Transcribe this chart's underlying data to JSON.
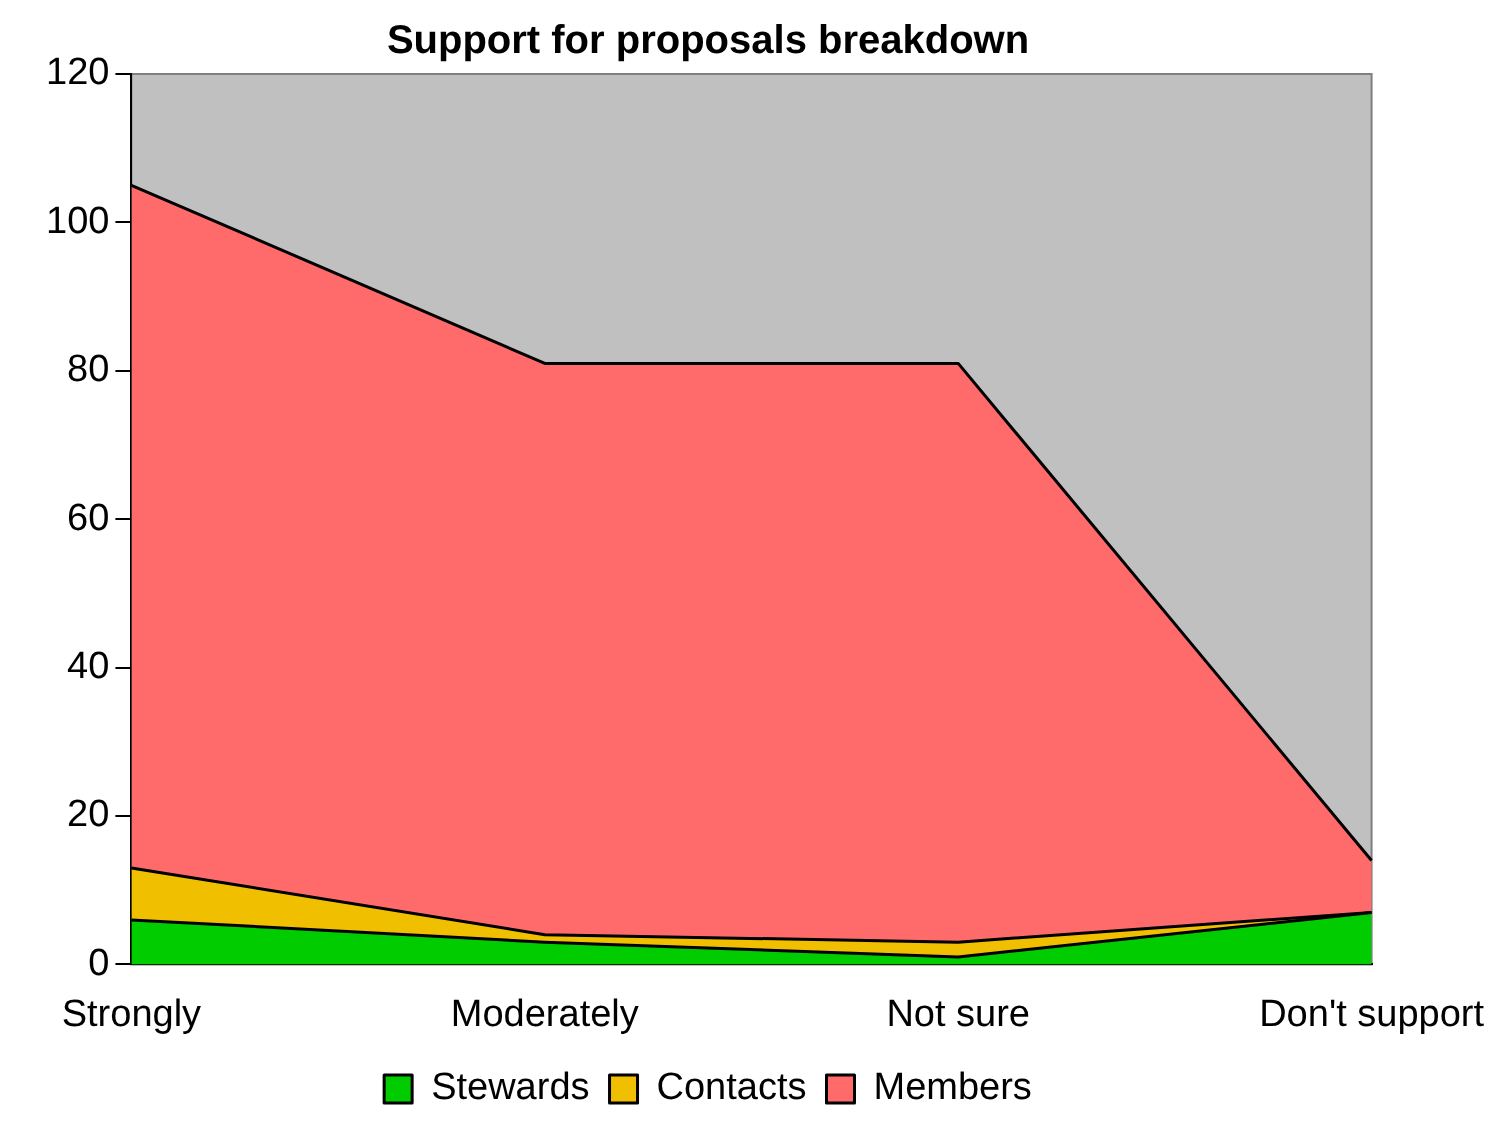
{
  "chart_data": {
    "type": "area",
    "title": "Support for proposals breakdown",
    "stacked": true,
    "categories": [
      "Strongly",
      "Moderately",
      "Not sure",
      "Don't support"
    ],
    "series": [
      {
        "name": "Stewards",
        "color": "#00cc00",
        "values": [
          6,
          3,
          1,
          7
        ]
      },
      {
        "name": "Contacts",
        "color": "#f0c000",
        "values": [
          7,
          1,
          2,
          0
        ]
      },
      {
        "name": "Members",
        "color": "#ff6a6a",
        "values": [
          92,
          77,
          78,
          7
        ]
      }
    ],
    "ylim": [
      0,
      120
    ],
    "yticks": [
      0,
      20,
      40,
      60,
      80,
      100,
      120
    ],
    "grid": false,
    "legend": "bottom"
  }
}
